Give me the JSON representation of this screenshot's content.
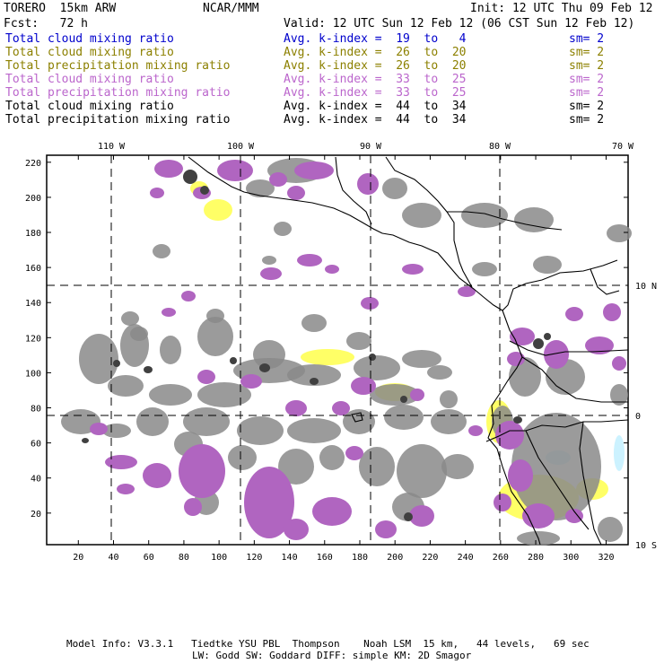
{
  "header": {
    "model": "TORERO  15km ARW",
    "org": "NCAR/MMM",
    "init": "Init: 12 UTC Thu 09 Feb 12",
    "fcst": "Fcst:   72 h",
    "valid": "Valid: 12 UTC Sun 12 Feb 12 (06 CST Sun 12 Feb 12)"
  },
  "legend": [
    {
      "field": "Total cloud mixing ratio",
      "kindex": "Avg. k-index =  19  to   4",
      "sm": "sm= 2",
      "color": "#0000cc"
    },
    {
      "field": "Total cloud mixing ratio",
      "kindex": "Avg. k-index =  26  to  20",
      "sm": "sm= 2",
      "color": "#8c8000"
    },
    {
      "field": "Total precipitation mixing ratio",
      "kindex": "Avg. k-index =  26  to  20",
      "sm": "sm= 2",
      "color": "#8c8000"
    },
    {
      "field": "Total cloud mixing ratio",
      "kindex": "Avg. k-index =  33  to  25",
      "sm": "sm= 2",
      "color": "#bb66cc"
    },
    {
      "field": "Total precipitation mixing ratio",
      "kindex": "Avg. k-index =  33  to  25",
      "sm": "sm= 2",
      "color": "#bb66cc"
    },
    {
      "field": "Total cloud mixing ratio",
      "kindex": "Avg. k-index =  44  to  34",
      "sm": "sm= 2",
      "color": "#000000"
    },
    {
      "field": "Total precipitation mixing ratio",
      "kindex": "Avg. k-index =  44  to  34",
      "sm": "sm= 2",
      "color": "#000000"
    }
  ],
  "map": {
    "lon_labels": [
      "110 W",
      "100 W",
      "90 W",
      "80 W",
      "70 W"
    ],
    "lat_labels": [
      "10 N",
      "0",
      "10 S"
    ],
    "x_ticks": [
      "20",
      "40",
      "60",
      "80",
      "100",
      "120",
      "140",
      "160",
      "180",
      "200",
      "220",
      "240",
      "260",
      "280",
      "300",
      "320"
    ],
    "y_ticks": [
      "20",
      "40",
      "60",
      "80",
      "100",
      "120",
      "140",
      "160",
      "180",
      "200",
      "220"
    ],
    "colors": {
      "gray": "#8a8a8a",
      "dark": "#404040",
      "magenta": "#b065c0",
      "yellow": "#ffff66",
      "cyan": "#ccf2ff"
    }
  },
  "footer": {
    "line1": "Model Info: V3.3.1   Tiedtke YSU PBL  Thompson    Noah LSM  15 km,   44 levels,   69 sec",
    "line2": "LW: Godd SW: Goddard DIFF: simple KM: 2D Smagor"
  }
}
